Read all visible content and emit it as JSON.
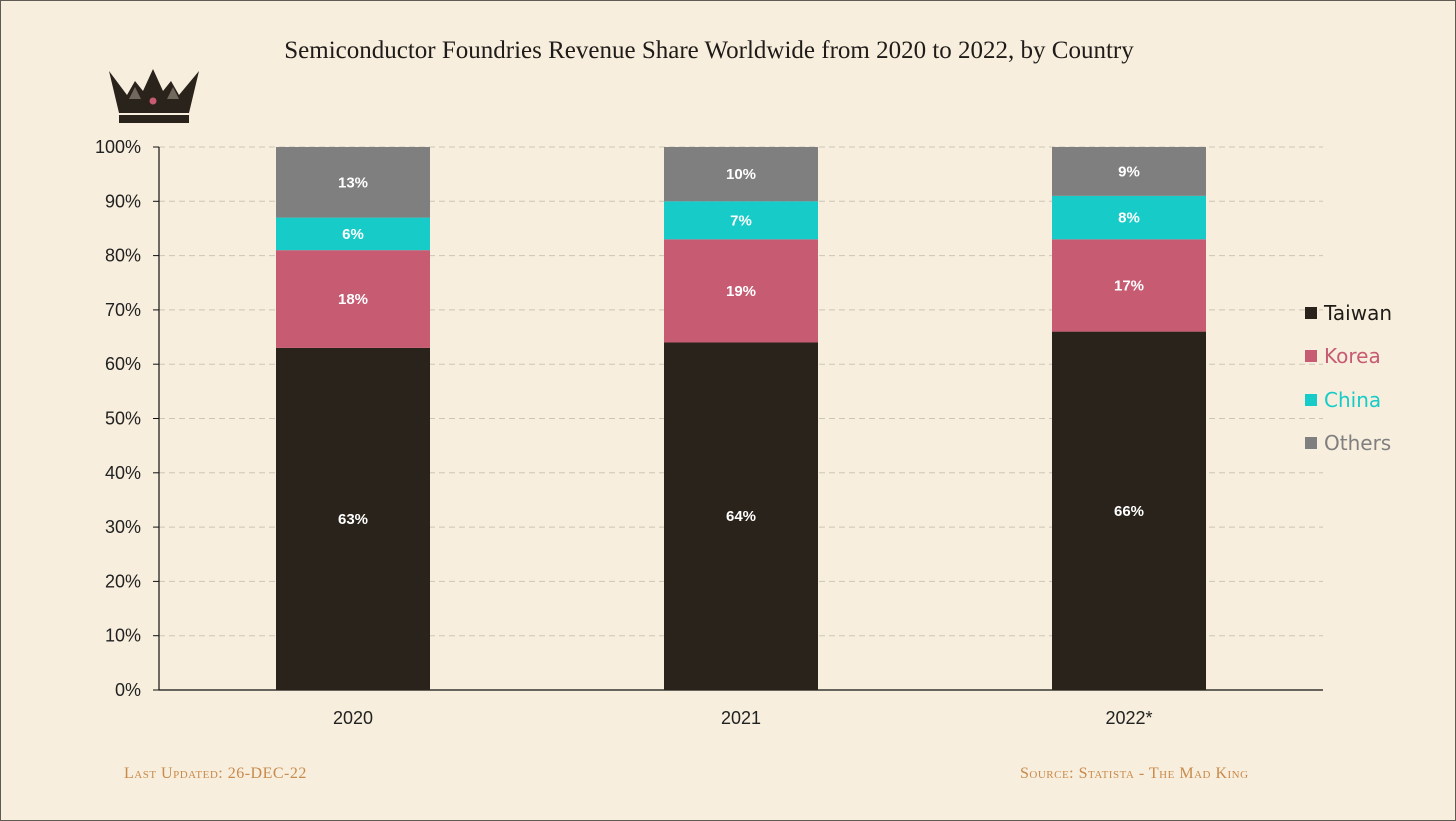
{
  "title": "Semiconductor Foundries Revenue Share Worldwide from 2020 to 2022, by Country",
  "footer": {
    "updated": "Last Updated: 26-DEC-22",
    "source": "Source: Statista  - The Mad King"
  },
  "colors": {
    "background": "#f7eedd",
    "Taiwan": "#2a231b",
    "Korea": "#c65b72",
    "China": "#17cbc8",
    "Others": "#7f7f7f",
    "footer_text": "#c98a4b",
    "crown": "#2a231b"
  },
  "logo": {
    "icon": "crown-icon"
  },
  "chart_data": {
    "type": "bar",
    "stacked": true,
    "title": "Semiconductor Foundries Revenue Share Worldwide from 2020 to 2022, by Country",
    "xlabel": "",
    "ylabel": "",
    "ylim": [
      0,
      1
    ],
    "yticks": [
      "0%",
      "10%",
      "20%",
      "30%",
      "40%",
      "50%",
      "60%",
      "70%",
      "80%",
      "90%",
      "100%"
    ],
    "categories": [
      "2020",
      "2021",
      "2022*"
    ],
    "grid": true,
    "legend": "right",
    "series": [
      {
        "name": "Taiwan",
        "values": [
          0.63,
          0.64,
          0.66
        ],
        "labels": [
          "63%",
          "64%",
          "66%"
        ]
      },
      {
        "name": "Korea",
        "values": [
          0.18,
          0.19,
          0.17
        ],
        "labels": [
          "18%",
          "19%",
          "17%"
        ]
      },
      {
        "name": "China",
        "values": [
          0.06,
          0.07,
          0.08
        ],
        "labels": [
          "6%",
          "7%",
          "8%"
        ]
      },
      {
        "name": "Others",
        "values": [
          0.13,
          0.1,
          0.09
        ],
        "labels": [
          "13%",
          "10%",
          "9%"
        ]
      }
    ]
  }
}
